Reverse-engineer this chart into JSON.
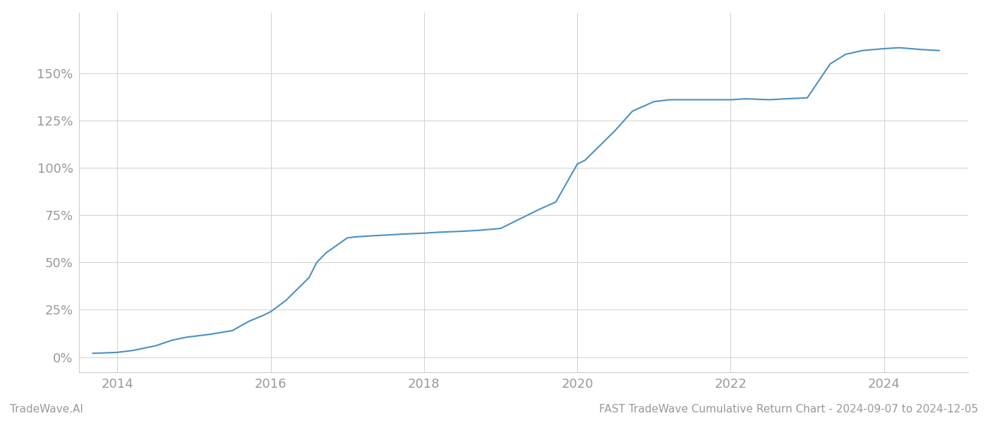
{
  "title": "FAST TradeWave Cumulative Return Chart - 2024-09-07 to 2024-12-05",
  "watermark_left": "TradeWave.AI",
  "line_color": "#4a90c4",
  "line_width": 1.5,
  "background_color": "#ffffff",
  "grid_color": "#d0d0d0",
  "x_years": [
    2013.68,
    2014.0,
    2014.2,
    2014.5,
    2014.72,
    2014.9,
    2015.0,
    2015.2,
    2015.5,
    2015.72,
    2015.9,
    2016.0,
    2016.2,
    2016.5,
    2016.6,
    2016.72,
    2017.0,
    2017.1,
    2017.2,
    2017.5,
    2017.72,
    2018.0,
    2018.2,
    2018.5,
    2018.72,
    2019.0,
    2019.2,
    2019.5,
    2019.72,
    2020.0,
    2020.1,
    2020.2,
    2020.5,
    2020.72,
    2021.0,
    2021.1,
    2021.2,
    2021.5,
    2021.72,
    2022.0,
    2022.2,
    2022.5,
    2022.72,
    2023.0,
    2023.1,
    2023.3,
    2023.5,
    2023.72,
    2024.0,
    2024.2,
    2024.5,
    2024.72
  ],
  "y_values": [
    2.0,
    2.5,
    3.5,
    6.0,
    9.0,
    10.5,
    11.0,
    12.0,
    14.0,
    19.0,
    22.0,
    24.0,
    30.0,
    42.0,
    50.0,
    55.0,
    63.0,
    63.5,
    63.8,
    64.5,
    65.0,
    65.5,
    66.0,
    66.5,
    67.0,
    68.0,
    72.0,
    78.0,
    82.0,
    102.0,
    104.0,
    108.0,
    120.0,
    130.0,
    135.0,
    135.5,
    136.0,
    136.0,
    136.0,
    136.0,
    136.5,
    136.0,
    136.5,
    137.0,
    143.0,
    155.0,
    160.0,
    162.0,
    163.0,
    163.5,
    162.5,
    162.0
  ],
  "xlim": [
    2013.5,
    2025.1
  ],
  "ylim": [
    -8,
    182
  ],
  "yticks": [
    0,
    25,
    50,
    75,
    100,
    125,
    150
  ],
  "xticks": [
    2014,
    2016,
    2018,
    2020,
    2022,
    2024
  ],
  "tick_label_color": "#999999",
  "spine_color": "#cccccc",
  "label_fontsize": 13,
  "footer_fontsize": 11
}
